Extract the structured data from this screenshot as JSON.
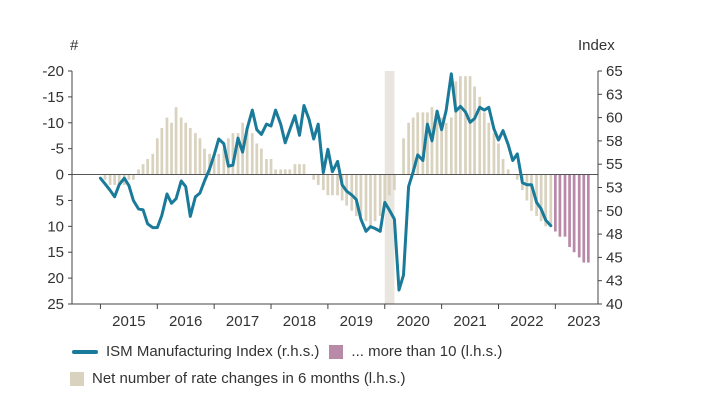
{
  "chart_data": {
    "type": "bar+line",
    "left_axis_unit": "#",
    "right_axis_unit": "Index",
    "left_axis": {
      "reversed": true,
      "min": -20,
      "max": 25,
      "ticks": [
        "-20",
        "-15",
        "-10",
        "-5",
        "0",
        "5",
        "10",
        "15",
        "20",
        "25"
      ]
    },
    "right_axis": {
      "min": 40,
      "max": 65,
      "ticks": [
        "65",
        "63",
        "60",
        "58",
        "55",
        "53",
        "50",
        "48",
        "45",
        "43",
        "40"
      ]
    },
    "x_labels": [
      "2015",
      "2016",
      "2017",
      "2018",
      "2019",
      "2020",
      "2021",
      "2022",
      "2023"
    ],
    "x_range": [
      2014.5,
      2023.75
    ],
    "shaded_period": [
      2020.0,
      2020.17
    ],
    "colors": {
      "line": "#1a7a9a",
      "bars": "#d9d2bf",
      "bars_large": "#b98aa8",
      "shade": "#e8e6df"
    },
    "series": [
      {
        "name": "ISM Manufacturing Index (r.h.s.)",
        "axis": "right",
        "x": [
          2015.0,
          2015.08,
          2015.17,
          2015.25,
          2015.33,
          2015.42,
          2015.5,
          2015.58,
          2015.67,
          2015.75,
          2015.83,
          2015.92,
          2016.0,
          2016.08,
          2016.17,
          2016.25,
          2016.33,
          2016.42,
          2016.5,
          2016.58,
          2016.67,
          2016.75,
          2016.83,
          2016.92,
          2017.0,
          2017.08,
          2017.17,
          2017.25,
          2017.33,
          2017.42,
          2017.5,
          2017.58,
          2017.67,
          2017.75,
          2017.83,
          2017.92,
          2018.0,
          2018.08,
          2018.17,
          2018.25,
          2018.33,
          2018.42,
          2018.5,
          2018.58,
          2018.67,
          2018.75,
          2018.83,
          2018.92,
          2019.0,
          2019.08,
          2019.17,
          2019.25,
          2019.33,
          2019.42,
          2019.5,
          2019.58,
          2019.67,
          2019.75,
          2019.83,
          2019.92,
          2020.0,
          2020.08,
          2020.17,
          2020.25,
          2020.33,
          2020.42,
          2020.5,
          2020.58,
          2020.67,
          2020.75,
          2020.83,
          2020.92,
          2021.0,
          2021.08,
          2021.17,
          2021.25,
          2021.33,
          2021.42,
          2021.5,
          2021.58,
          2021.67,
          2021.75,
          2021.83,
          2021.92,
          2022.0,
          2022.08,
          2022.17,
          2022.25,
          2022.33,
          2022.42,
          2022.5,
          2022.58,
          2022.67,
          2022.75,
          2022.83,
          2022.92
        ],
        "values": [
          53.5,
          52.9,
          52.2,
          51.5,
          52.8,
          53.5,
          52.7,
          51.1,
          50.2,
          50.1,
          48.6,
          48.2,
          48.2,
          49.5,
          51.8,
          50.8,
          51.3,
          53.2,
          52.6,
          49.4,
          51.5,
          51.9,
          53.2,
          54.5,
          56.0,
          57.7,
          57.2,
          54.8,
          54.9,
          57.8,
          56.3,
          58.8,
          60.8,
          58.7,
          58.2,
          59.3,
          59.1,
          60.8,
          59.3,
          57.3,
          58.7,
          60.2,
          58.1,
          61.3,
          59.8,
          57.7,
          59.3,
          54.1,
          56.6,
          54.2,
          55.3,
          52.8,
          52.1,
          51.7,
          51.2,
          49.1,
          47.8,
          48.3,
          48.1,
          47.8,
          50.9,
          50.1,
          49.1,
          41.5,
          43.1,
          52.6,
          54.2,
          56.0,
          55.4,
          59.3,
          57.5,
          60.7,
          58.7,
          60.8,
          64.7,
          60.7,
          61.2,
          60.6,
          59.5,
          59.9,
          61.1,
          60.8,
          61.1,
          58.8,
          57.6,
          58.6,
          57.1,
          55.4,
          56.1,
          53.0,
          52.8,
          52.8,
          50.9,
          50.2,
          49.0,
          48.4
        ]
      },
      {
        "name": "Net number of rate changes in 6 months (l.h.s.)",
        "axis": "left",
        "x": [
          2015.0,
          2015.08,
          2015.17,
          2015.25,
          2015.33,
          2015.42,
          2015.5,
          2015.58,
          2015.67,
          2015.75,
          2015.83,
          2015.92,
          2016.0,
          2016.08,
          2016.17,
          2016.25,
          2016.33,
          2016.42,
          2016.5,
          2016.58,
          2016.67,
          2016.75,
          2016.83,
          2016.92,
          2017.0,
          2017.08,
          2017.17,
          2017.25,
          2017.33,
          2017.42,
          2017.5,
          2017.58,
          2017.67,
          2017.75,
          2017.83,
          2017.92,
          2018.0,
          2018.08,
          2018.17,
          2018.25,
          2018.33,
          2018.42,
          2018.5,
          2018.58,
          2018.67,
          2018.75,
          2018.83,
          2018.92,
          2019.0,
          2019.08,
          2019.17,
          2019.25,
          2019.33,
          2019.42,
          2019.5,
          2019.58,
          2019.67,
          2019.75,
          2019.83,
          2019.92,
          2020.0,
          2020.08,
          2020.17,
          2020.25,
          2020.33,
          2020.42,
          2020.5,
          2020.58,
          2020.67,
          2020.75,
          2020.83,
          2020.92,
          2021.0,
          2021.08,
          2021.17,
          2021.25,
          2021.33,
          2021.42,
          2021.5,
          2021.58,
          2021.67,
          2021.75,
          2021.83,
          2021.92,
          2022.0,
          2022.08,
          2022.17,
          2022.25,
          2022.33,
          2022.42,
          2022.5,
          2022.58,
          2022.67,
          2022.75,
          2022.83,
          2022.92,
          2023.0,
          2023.08,
          2023.17,
          2023.25,
          2023.33,
          2023.42,
          2023.5,
          2023.58
        ],
        "values": [
          0,
          1,
          2,
          2,
          2,
          2,
          1,
          1,
          -1,
          -2,
          -3,
          -4,
          -7,
          -9,
          -11,
          -10,
          -13,
          -11,
          -10,
          -9,
          -8,
          -7,
          -5,
          -4,
          -3,
          -4,
          -5,
          -7,
          -8,
          -8,
          -10,
          -9,
          -8,
          -6,
          -5,
          -3,
          -3,
          -1,
          -1,
          -1,
          -1,
          -2,
          -2,
          -2,
          0,
          1,
          2,
          3,
          4,
          4,
          4,
          5,
          6,
          7,
          8,
          8,
          9,
          10,
          9,
          8,
          6,
          4,
          3,
          0,
          -7,
          -10,
          -11,
          -12,
          -12,
          -12,
          -13,
          -12,
          -11,
          -10,
          -11,
          -18,
          -19,
          -19,
          -19,
          -17,
          -15,
          -12,
          -10,
          -8,
          -6,
          -3,
          -1,
          0,
          1,
          3,
          5,
          7,
          8,
          9,
          10,
          10,
          11,
          12,
          12,
          14,
          15,
          16,
          17,
          17
        ]
      }
    ],
    "legend": [
      {
        "label": "ISM Manufacturing Index (r.h.s.)"
      },
      {
        "label": "... more than 10 (l.h.s.)"
      },
      {
        "label": "Net number of rate changes in 6 months (l.h.s.)"
      }
    ]
  }
}
